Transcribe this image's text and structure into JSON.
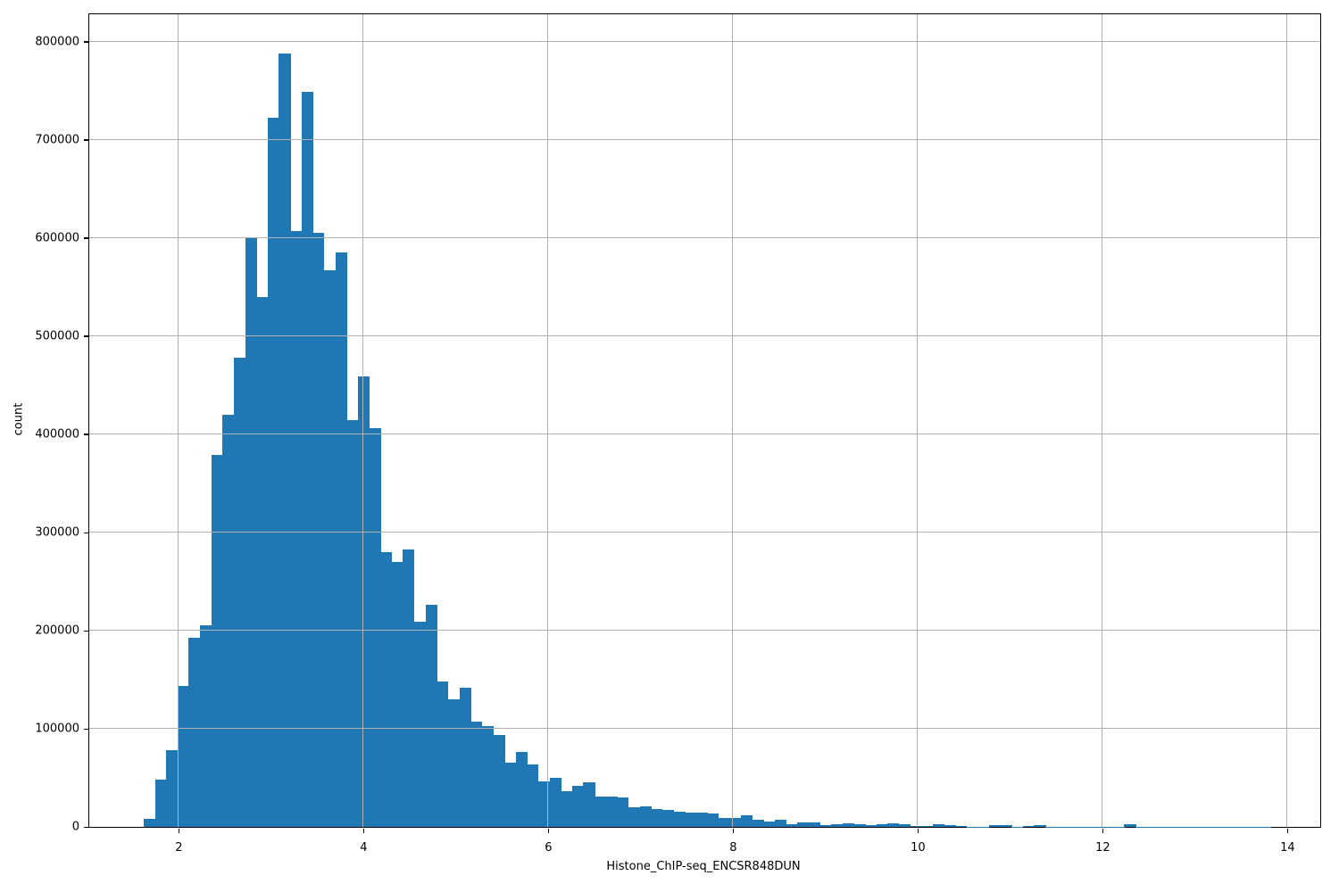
{
  "chart_data": {
    "type": "bar",
    "subtype": "histogram",
    "title": "",
    "xlabel": "Histone_ChIP-seq_ENCSR848DUN",
    "ylabel": "count",
    "bar_color": "#1f77b4",
    "grid_color": "#b0b0b0",
    "grid": true,
    "xlim": [
      1.034,
      14.358
    ],
    "ylim": [
      0,
      827700
    ],
    "x_ticks": [
      "2",
      "4",
      "6",
      "8",
      "10",
      "12",
      "14"
    ],
    "x_tick_values": [
      2,
      4,
      6,
      8,
      10,
      12,
      14
    ],
    "y_ticks": [
      "0",
      "100000",
      "200000",
      "300000",
      "400000",
      "500000",
      "600000",
      "700000",
      "800000"
    ],
    "y_tick_values": [
      0,
      100000,
      200000,
      300000,
      400000,
      500000,
      600000,
      700000,
      800000
    ],
    "bin_start": 1.623,
    "bin_width": 0.122,
    "counts": [
      8000,
      48000,
      78000,
      144000,
      193000,
      205000,
      379000,
      420000,
      478000,
      601000,
      540000,
      722000,
      788000,
      607000,
      749000,
      605000,
      567000,
      585000,
      414000,
      459000,
      406000,
      280000,
      270000,
      283000,
      209000,
      226000,
      148000,
      130000,
      142000,
      107000,
      103000,
      94000,
      65000,
      76000,
      64000,
      46000,
      50000,
      36000,
      42000,
      45000,
      31000,
      31000,
      30000,
      20000,
      21000,
      18400,
      17000,
      15400,
      14800,
      14200,
      13300,
      9300,
      8700,
      12000,
      7000,
      5400,
      7500,
      2400,
      5000,
      4500,
      1500,
      3000,
      3500,
      2700,
      1500,
      2500,
      4000,
      2900,
      1000,
      1200,
      2800,
      2200,
      800,
      400,
      300,
      1500,
      1400,
      300,
      800,
      2000,
      300,
      200,
      150,
      150,
      150,
      150,
      150,
      2600,
      100,
      100,
      100,
      100,
      100,
      100,
      100,
      100,
      100,
      100,
      100,
      100
    ]
  }
}
